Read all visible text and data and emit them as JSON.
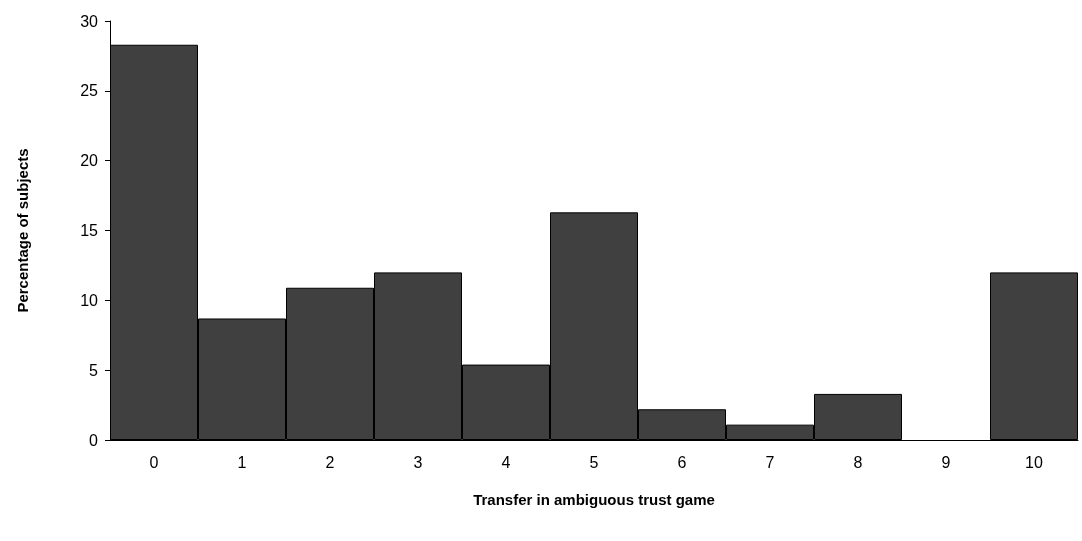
{
  "chart_data": {
    "type": "bar",
    "xlabel": "Transfer in ambiguous trust game",
    "ylabel": "Percentage of subjects",
    "categories": [
      "0",
      "1",
      "2",
      "3",
      "4",
      "5",
      "6",
      "7",
      "8",
      "9",
      "10"
    ],
    "values": [
      28.3,
      8.7,
      10.9,
      12.0,
      5.4,
      16.3,
      2.2,
      1.1,
      3.3,
      0,
      12.0
    ],
    "color": "#404040",
    "ylim": [
      0,
      30
    ],
    "yticks": [
      0,
      5,
      10,
      15,
      20,
      25,
      30
    ],
    "grid": false
  }
}
